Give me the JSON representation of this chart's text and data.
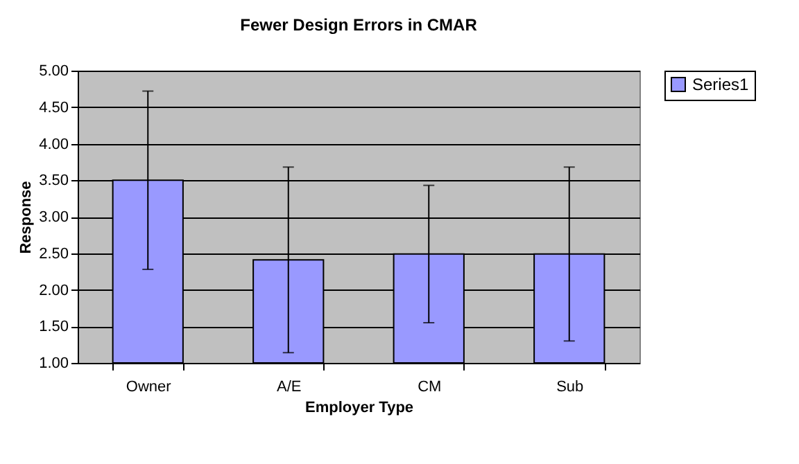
{
  "chart_data": {
    "type": "bar",
    "title": "Fewer Design Errors in CMAR",
    "xlabel": "Employer Type",
    "ylabel": "Response",
    "categories": [
      "Owner",
      "A/E",
      "CM",
      "Sub"
    ],
    "series": [
      {
        "name": "Series1",
        "color": "#9999ff",
        "values": [
          3.5,
          2.41,
          2.49,
          2.49
        ],
        "errors": [
          1.22,
          1.27,
          0.94,
          1.19
        ]
      }
    ],
    "ylim": [
      1.0,
      5.0
    ],
    "yticks": [
      {
        "value": 1,
        "label": "1.00"
      },
      {
        "value": 1.5,
        "label": "1.50"
      },
      {
        "value": 2,
        "label": "2.00"
      },
      {
        "value": 2.5,
        "label": "2.50"
      },
      {
        "value": 3,
        "label": "3.00"
      },
      {
        "value": 3.5,
        "label": "3.50"
      },
      {
        "value": 4,
        "label": "4.00"
      },
      {
        "value": 4.5,
        "label": "4.50"
      },
      {
        "value": 5,
        "label": "5.00"
      }
    ],
    "grid": "y",
    "legend": "right"
  }
}
